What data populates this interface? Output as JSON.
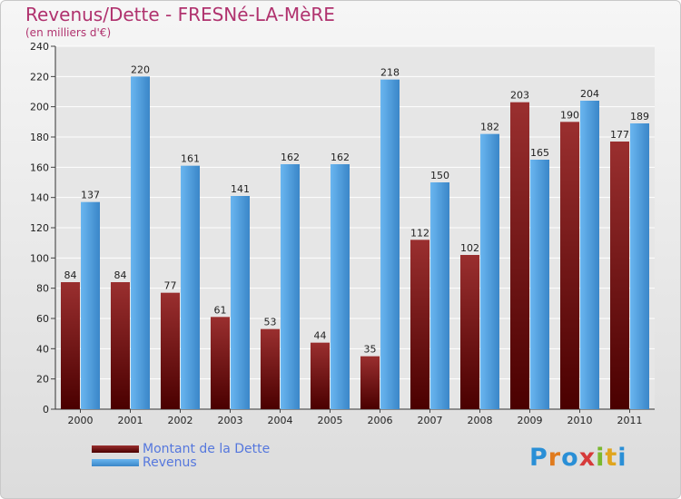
{
  "title": "Revenus/Dette - FRESNé-LA-MèRE",
  "subtitle": "(en milliers d'€)",
  "logo_text": "Proxiti",
  "colors": {
    "dette": "#7a1515",
    "dette_light": "#9a2f2f",
    "revenus": "#55a6e8",
    "revenus_dark": "#3a86c8",
    "title": "#b0326e",
    "legend_text": "#5577dd"
  },
  "chart_data": {
    "type": "bar",
    "categories": [
      "2000",
      "2001",
      "2002",
      "2003",
      "2004",
      "2005",
      "2006",
      "2007",
      "2008",
      "2009",
      "2010",
      "2011"
    ],
    "series": [
      {
        "name": "Montant de la Dette",
        "values": [
          84,
          84,
          77,
          61,
          53,
          44,
          35,
          112,
          102,
          203,
          190,
          177
        ]
      },
      {
        "name": "Revenus",
        "values": [
          137,
          220,
          161,
          141,
          162,
          162,
          218,
          150,
          182,
          165,
          204,
          189
        ]
      }
    ],
    "ylim": [
      0,
      240
    ],
    "yticks": [
      0,
      20,
      40,
      60,
      80,
      100,
      120,
      140,
      160,
      180,
      200,
      220,
      240
    ],
    "grid": true,
    "legend_position": "bottom-left"
  }
}
